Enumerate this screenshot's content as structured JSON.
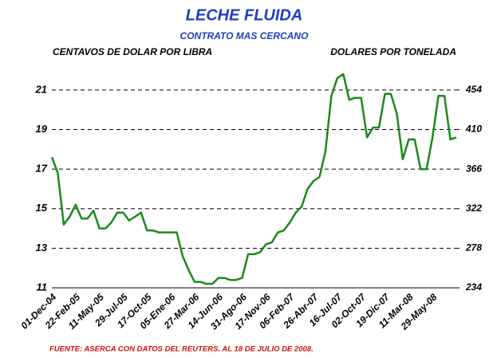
{
  "chart_data": {
    "type": "line",
    "title": "LECHE FLUIDA",
    "subtitle": "CONTRATO MAS CERCANO",
    "y_label": "CENTAVOS DE DOLAR POR LIBRA",
    "y2_label": "DOLARES POR TONELADA",
    "source": "FUENTE: ASERCA CON DATOS DEL REUTERS. AL 18 DE JULIO DE 2008.",
    "categories": [
      "01-Dec-04",
      null,
      null,
      null,
      "22-Feb-05",
      null,
      null,
      null,
      "11-May-05",
      null,
      null,
      null,
      "29-Jul-05",
      null,
      null,
      null,
      "17-Oct-05",
      null,
      null,
      null,
      "05-Ene-06",
      null,
      null,
      null,
      "27-Mar-06",
      null,
      null,
      null,
      "14-Jun-06",
      null,
      null,
      null,
      "31-Ago-06",
      null,
      null,
      null,
      "17-Nov-06",
      null,
      null,
      null,
      "06-Feb-07",
      null,
      null,
      null,
      "26-Abr-07",
      null,
      null,
      null,
      "16-Jul-07",
      null,
      null,
      null,
      "02-Oct-07",
      null,
      null,
      null,
      "19-Dic-07",
      null,
      null,
      null,
      "11-Mar-08",
      null,
      null,
      null,
      "29-May-08",
      null,
      null,
      null,
      null
    ],
    "series": [
      {
        "name": "LECHE FLUIDA",
        "color": "#1a8a1a",
        "values": [
          17.6,
          16.8,
          14.2,
          14.6,
          15.2,
          14.5,
          14.5,
          14.9,
          14.0,
          14.0,
          14.3,
          14.8,
          14.8,
          14.4,
          14.6,
          14.8,
          13.9,
          13.9,
          13.8,
          13.8,
          13.8,
          13.8,
          12.6,
          11.9,
          11.3,
          11.3,
          11.2,
          11.2,
          11.5,
          11.5,
          11.4,
          11.4,
          11.5,
          12.7,
          12.7,
          12.8,
          13.2,
          13.3,
          13.8,
          13.9,
          14.3,
          14.8,
          15.1,
          16.0,
          16.4,
          16.6,
          17.9,
          20.7,
          21.6,
          21.8,
          20.5,
          20.6,
          20.6,
          18.6,
          19.1,
          19.1,
          20.8,
          20.8,
          19.8,
          17.5,
          18.5,
          18.5,
          17.0,
          17.0,
          18.6,
          20.7,
          20.7,
          18.5,
          18.6
        ]
      }
    ],
    "ylim": [
      11,
      22
    ],
    "yticks": [
      11,
      13,
      15,
      17,
      19,
      21
    ],
    "y2lim": [
      234,
      476
    ],
    "y2ticks": [
      234,
      278,
      322,
      366,
      410,
      454
    ],
    "grid": true
  }
}
